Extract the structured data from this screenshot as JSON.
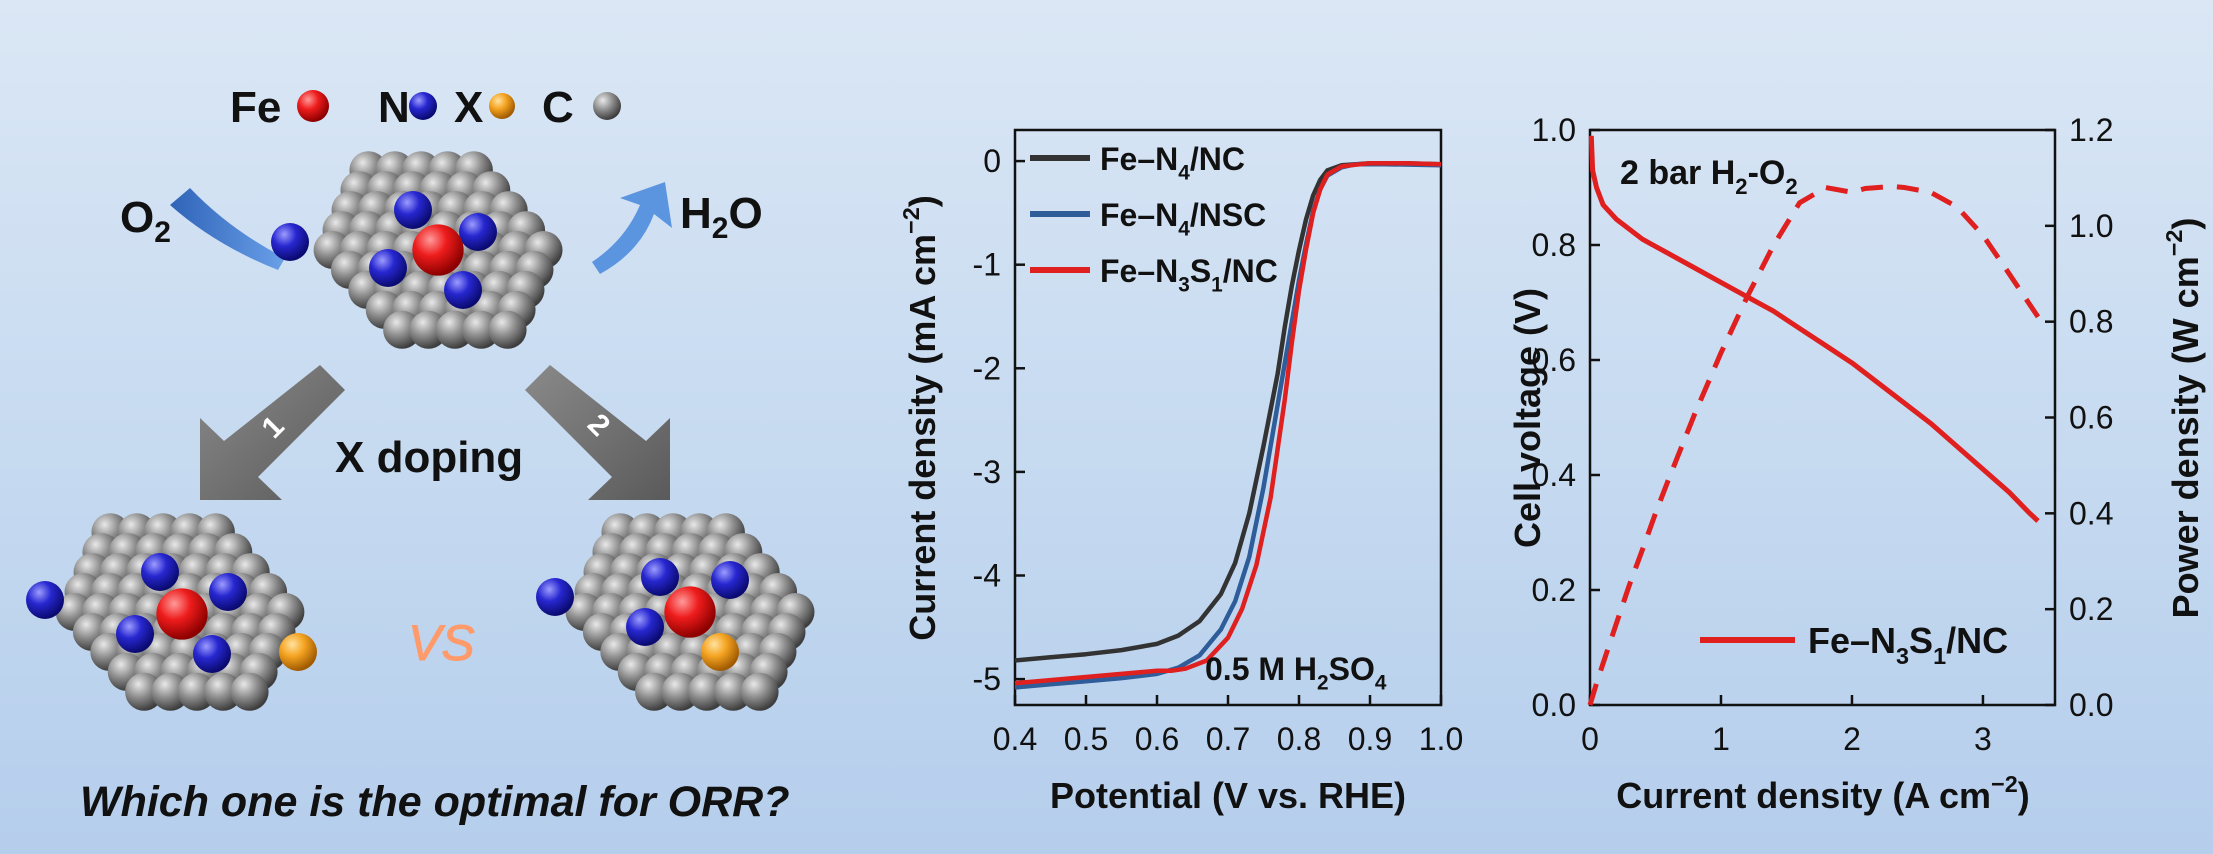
{
  "scheme": {
    "legend": [
      {
        "label": "Fe",
        "color": "#e0161b"
      },
      {
        "label": "N",
        "color": "#2222c8"
      },
      {
        "label": "X",
        "color": "#f0a020"
      },
      {
        "label": "C",
        "color": "#909090"
      }
    ],
    "reactant": "O2",
    "product": "H2O",
    "arrow_left_number": "1",
    "arrow_right_number": "2",
    "doping_label": "X doping",
    "vs_label": "VS",
    "question": "Which one is the optimal for ORR?"
  },
  "chart_data": [
    {
      "type": "line",
      "title": "",
      "xlabel": "Potential (V vs. RHE)",
      "ylabel": "Current density (mA cm−2)",
      "xlim": [
        0.4,
        1.0
      ],
      "ylim": [
        -5.25,
        0.3
      ],
      "x_ticks": [
        "0.4",
        "0.5",
        "0.6",
        "0.7",
        "0.8",
        "0.9",
        "1.0"
      ],
      "y_ticks": [
        "0",
        "-1",
        "-2",
        "-3",
        "-4",
        "-5"
      ],
      "annotation": "0.5 M H2SO4",
      "legend_position": "top-left",
      "series": [
        {
          "name": "Fe–N4/NC",
          "color": "#333333",
          "points": [
            [
              0.4,
              -4.82
            ],
            [
              0.45,
              -4.79
            ],
            [
              0.5,
              -4.76
            ],
            [
              0.55,
              -4.72
            ],
            [
              0.6,
              -4.66
            ],
            [
              0.63,
              -4.58
            ],
            [
              0.66,
              -4.44
            ],
            [
              0.69,
              -4.18
            ],
            [
              0.71,
              -3.88
            ],
            [
              0.73,
              -3.4
            ],
            [
              0.75,
              -2.75
            ],
            [
              0.77,
              -2.05
            ],
            [
              0.78,
              -1.6
            ],
            [
              0.79,
              -1.2
            ],
            [
              0.8,
              -0.86
            ],
            [
              0.81,
              -0.56
            ],
            [
              0.82,
              -0.33
            ],
            [
              0.83,
              -0.18
            ],
            [
              0.84,
              -0.09
            ],
            [
              0.86,
              -0.04
            ],
            [
              0.9,
              -0.02
            ],
            [
              0.95,
              -0.02
            ],
            [
              1.0,
              -0.03
            ]
          ]
        },
        {
          "name": "Fe–N4/NSC",
          "color": "#2e5d9a",
          "points": [
            [
              0.4,
              -5.08
            ],
            [
              0.45,
              -5.05
            ],
            [
              0.5,
              -5.02
            ],
            [
              0.55,
              -4.99
            ],
            [
              0.6,
              -4.95
            ],
            [
              0.63,
              -4.89
            ],
            [
              0.66,
              -4.77
            ],
            [
              0.69,
              -4.52
            ],
            [
              0.71,
              -4.25
            ],
            [
              0.73,
              -3.82
            ],
            [
              0.75,
              -3.15
            ],
            [
              0.77,
              -2.35
            ],
            [
              0.79,
              -1.55
            ],
            [
              0.8,
              -1.15
            ],
            [
              0.81,
              -0.8
            ],
            [
              0.82,
              -0.48
            ],
            [
              0.83,
              -0.27
            ],
            [
              0.84,
              -0.14
            ],
            [
              0.86,
              -0.06
            ],
            [
              0.88,
              -0.03
            ],
            [
              0.92,
              -0.03
            ],
            [
              1.0,
              -0.04
            ]
          ]
        },
        {
          "name": "Fe–N3S1/NC",
          "color": "#e01f1f",
          "points": [
            [
              0.4,
              -5.04
            ],
            [
              0.45,
              -5.01
            ],
            [
              0.5,
              -4.98
            ],
            [
              0.55,
              -4.95
            ],
            [
              0.6,
              -4.92
            ],
            [
              0.62,
              -4.92
            ],
            [
              0.64,
              -4.9
            ],
            [
              0.67,
              -4.82
            ],
            [
              0.7,
              -4.6
            ],
            [
              0.72,
              -4.32
            ],
            [
              0.74,
              -3.9
            ],
            [
              0.76,
              -3.25
            ],
            [
              0.78,
              -2.3
            ],
            [
              0.79,
              -1.75
            ],
            [
              0.8,
              -1.25
            ],
            [
              0.81,
              -0.85
            ],
            [
              0.82,
              -0.5
            ],
            [
              0.83,
              -0.27
            ],
            [
              0.84,
              -0.13
            ],
            [
              0.86,
              -0.05
            ],
            [
              0.9,
              -0.02
            ],
            [
              0.95,
              -0.02
            ],
            [
              1.0,
              -0.03
            ]
          ]
        }
      ]
    },
    {
      "type": "line",
      "title": "",
      "xlabel": "Current density (A cm−2)",
      "ylabel": "Cell voltage (V)",
      "y2label": "Power density (W cm−2)",
      "xlim": [
        0,
        3.55
      ],
      "ylim": [
        0,
        1.0
      ],
      "y2lim": [
        0,
        1.2
      ],
      "x_ticks": [
        "0",
        "1",
        "2",
        "3"
      ],
      "y_ticks": [
        "0.0",
        "0.2",
        "0.4",
        "0.6",
        "0.8",
        "1.0"
      ],
      "y2_ticks": [
        "0.0",
        "0.2",
        "0.4",
        "0.6",
        "0.8",
        "1.0",
        "1.2"
      ],
      "annotation": "2 bar H2-O2",
      "legend_position": "bottom-right",
      "series": [
        {
          "name": "Fe–N3S1/NC",
          "axis": "left",
          "style": "solid",
          "color": "#e01f1f",
          "points": [
            [
              0.01,
              0.99
            ],
            [
              0.02,
              0.93
            ],
            [
              0.05,
              0.9
            ],
            [
              0.1,
              0.87
            ],
            [
              0.2,
              0.845
            ],
            [
              0.4,
              0.81
            ],
            [
              0.6,
              0.785
            ],
            [
              0.8,
              0.76
            ],
            [
              1.0,
              0.735
            ],
            [
              1.2,
              0.71
            ],
            [
              1.4,
              0.685
            ],
            [
              1.6,
              0.655
            ],
            [
              1.8,
              0.625
            ],
            [
              2.0,
              0.595
            ],
            [
              2.2,
              0.56
            ],
            [
              2.4,
              0.525
            ],
            [
              2.6,
              0.49
            ],
            [
              2.8,
              0.45
            ],
            [
              3.0,
              0.41
            ],
            [
              3.2,
              0.37
            ],
            [
              3.35,
              0.335
            ],
            [
              3.42,
              0.32
            ]
          ]
        },
        {
          "name": "",
          "axis": "right",
          "style": "dashed",
          "color": "#e01f1f",
          "points": [
            [
              0.0,
              0.0
            ],
            [
              0.05,
              0.045
            ],
            [
              0.1,
              0.087
            ],
            [
              0.2,
              0.169
            ],
            [
              0.3,
              0.25
            ],
            [
              0.4,
              0.324
            ],
            [
              0.5,
              0.4
            ],
            [
              0.6,
              0.471
            ],
            [
              0.8,
              0.608
            ],
            [
              1.0,
              0.735
            ],
            [
              1.2,
              0.852
            ],
            [
              1.4,
              0.959
            ],
            [
              1.6,
              1.048
            ],
            [
              1.8,
              1.08
            ],
            [
              2.0,
              1.07
            ],
            [
              2.1,
              1.078
            ],
            [
              2.2,
              1.08
            ],
            [
              2.3,
              1.082
            ],
            [
              2.4,
              1.08
            ],
            [
              2.6,
              1.07
            ],
            [
              2.8,
              1.04
            ],
            [
              3.0,
              0.98
            ],
            [
              3.2,
              0.9
            ],
            [
              3.42,
              0.81
            ]
          ]
        }
      ]
    }
  ]
}
